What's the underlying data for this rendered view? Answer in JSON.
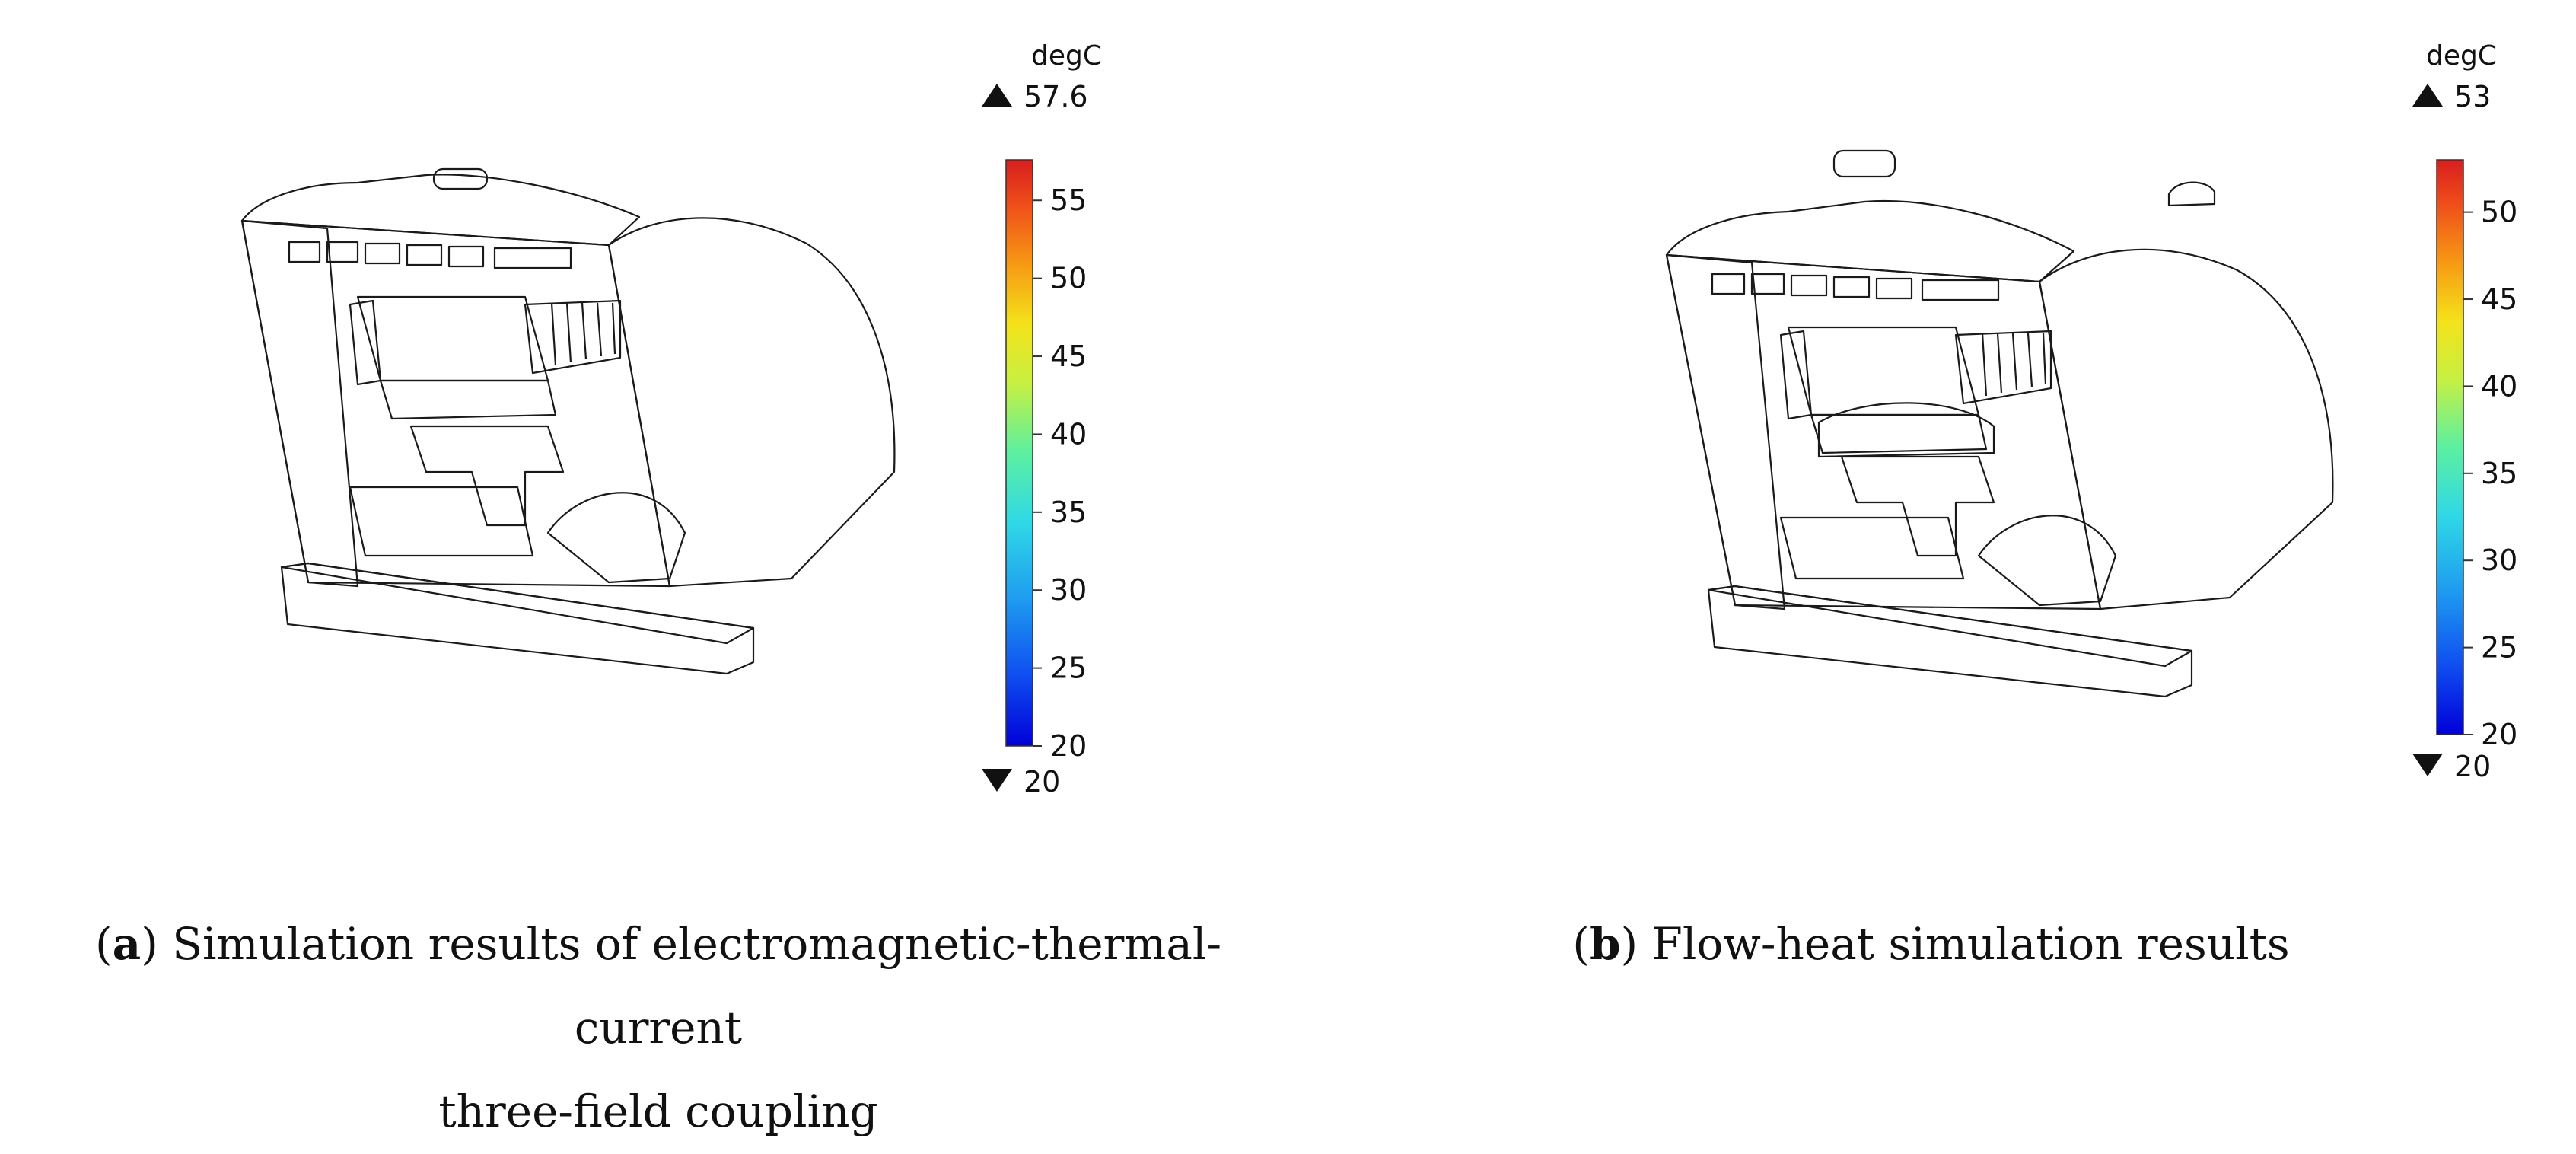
{
  "panels": [
    {
      "id": "a",
      "unit": "degC",
      "max_marker": "57.6",
      "min_marker": "20",
      "ticks": [
        "55",
        "50",
        "45",
        "40",
        "35",
        "30",
        "25",
        "20"
      ],
      "tick_values": [
        55,
        50,
        45,
        40,
        35,
        30,
        25,
        20
      ],
      "range": [
        20,
        57.6
      ],
      "caption_label": "a",
      "caption_line1": "Simulation results of electromagnetic-thermal-current",
      "caption_line2": "three-field coupling"
    },
    {
      "id": "b",
      "unit": "degC",
      "max_marker": "53",
      "min_marker": "20",
      "ticks": [
        "50",
        "45",
        "40",
        "35",
        "30",
        "25",
        "20"
      ],
      "tick_values": [
        50,
        45,
        40,
        35,
        30,
        25,
        20
      ],
      "range": [
        20,
        53
      ],
      "caption_label": "b",
      "caption_line1": "Flow-heat simulation results",
      "caption_line2": ""
    }
  ],
  "colors": {
    "scale": [
      "#0000d8",
      "#0f4ef0",
      "#1e9cf0",
      "#2fd8e6",
      "#5cf0a0",
      "#c8f040",
      "#f4e21a",
      "#f79a14",
      "#f0501a",
      "#d81e1e"
    ]
  },
  "icons": {
    "max": "triangle-up-icon",
    "min": "triangle-down-icon"
  }
}
